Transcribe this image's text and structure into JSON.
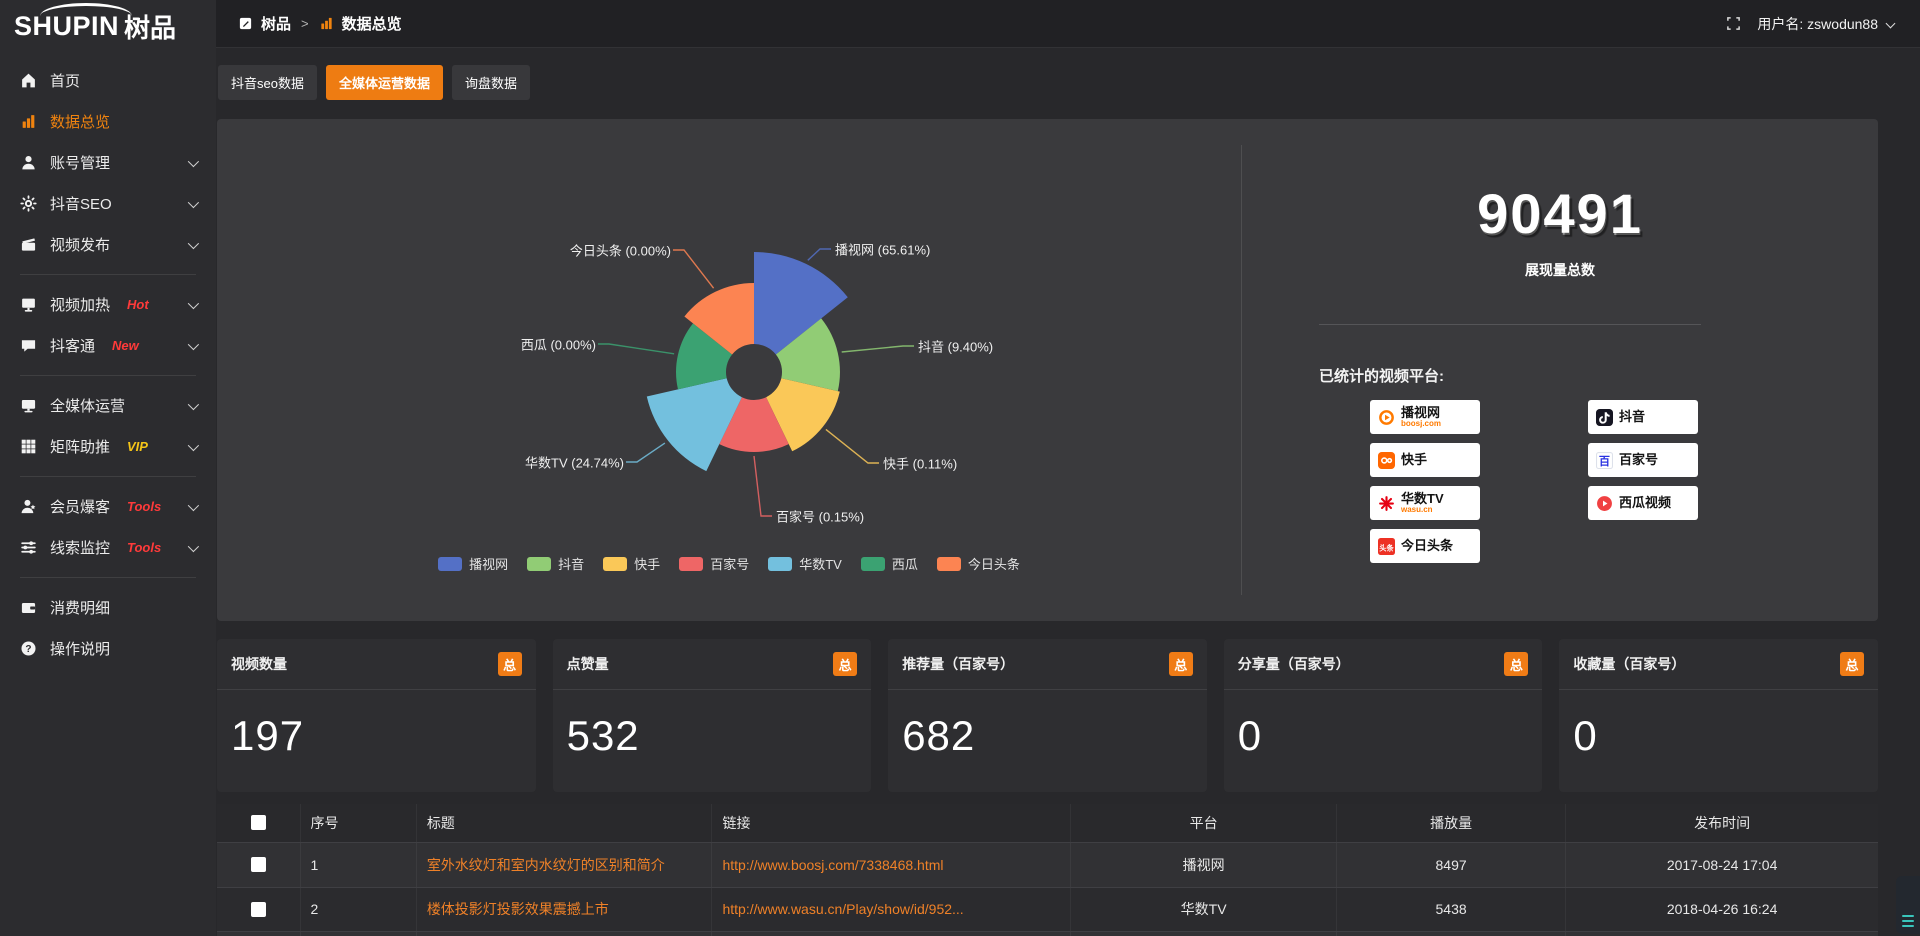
{
  "app": {
    "logo_en": "SHUPIN",
    "logo_cn": "树品"
  },
  "topbar": {
    "breadcrumb_home": "树品",
    "breadcrumb_sep": ">",
    "breadcrumb_current": "数据总览",
    "username": "用户名: zswodun88"
  },
  "sidebar": {
    "items": [
      {
        "icon": "home-icon",
        "label": "首页"
      },
      {
        "icon": "bar-chart-icon",
        "label": "数据总览",
        "active": true
      },
      {
        "icon": "user-icon",
        "label": "账号管理",
        "chevron": true
      },
      {
        "icon": "gear-icon",
        "label": "抖音SEO",
        "chevron": true
      },
      {
        "icon": "video-icon",
        "label": "视频发布",
        "chevron": true,
        "divider_after": true
      },
      {
        "icon": "screen-icon",
        "label": "视频加热",
        "tag": "Hot",
        "tag_color": "#ff3a3a",
        "chevron": true
      },
      {
        "icon": "chat-icon",
        "label": "抖客通",
        "tag": "New",
        "tag_color": "#ff3a3a",
        "chevron": true,
        "divider_after": true
      },
      {
        "icon": "monitor-icon",
        "label": "全媒体运营",
        "chevron": true
      },
      {
        "icon": "grid-icon",
        "label": "矩阵助推",
        "tag": "VIP",
        "tag_color": "#f5c518",
        "chevron": true,
        "divider_after": true
      },
      {
        "icon": "member-icon",
        "label": "会员爆客",
        "tag": "Tools",
        "tag_color": "#ff3a3a",
        "chevron": true
      },
      {
        "icon": "sliders-icon",
        "label": "线索监控",
        "tag": "Tools",
        "tag_color": "#ff3a3a",
        "chevron": true,
        "divider_after": true
      },
      {
        "icon": "wallet-icon",
        "label": "消费明细"
      },
      {
        "icon": "question-icon",
        "label": "操作说明"
      }
    ]
  },
  "tabs": [
    {
      "label": "抖音seo数据"
    },
    {
      "label": "全媒体运营数据",
      "active": true
    },
    {
      "label": "询盘数据"
    }
  ],
  "chart_data": {
    "type": "pie",
    "variant": "nightingale-rose",
    "legend_position": "bottom",
    "label_format": "{name} ({percent}%)",
    "series": [
      {
        "name": "播视网",
        "percent": 65.61,
        "color": "#5470c6"
      },
      {
        "name": "抖音",
        "percent": 9.4,
        "color": "#91cc75"
      },
      {
        "name": "快手",
        "percent": 0.11,
        "color": "#fac858"
      },
      {
        "name": "百家号",
        "percent": 0.15,
        "color": "#ee6666"
      },
      {
        "name": "华数TV",
        "percent": 24.74,
        "color": "#73c0de"
      },
      {
        "name": "西瓜",
        "percent": 0.0,
        "color": "#3ba272"
      },
      {
        "name": "今日头条",
        "percent": 0.0,
        "color": "#fc8452"
      }
    ]
  },
  "summary": {
    "total_value": "90491",
    "total_label": "展现量总数",
    "platforms_title": "已统计的视频平台:",
    "platform_badges": [
      {
        "name": "播视网",
        "sub": "boosj.com",
        "icon": "boosj-icon",
        "col": "left"
      },
      {
        "name": "快手",
        "icon": "kuaishou-icon",
        "col": "left"
      },
      {
        "name": "华数TV",
        "sub": "wasu.cn",
        "icon": "wasu-icon",
        "col": "left"
      },
      {
        "name": "今日头条",
        "icon": "toutiao-icon",
        "col": "left"
      },
      {
        "name": "抖音",
        "icon": "douyin-icon",
        "col": "right"
      },
      {
        "name": "百家号",
        "icon": "baijiahao-icon",
        "col": "right"
      },
      {
        "name": "西瓜视频",
        "icon": "xigua-icon",
        "col": "right"
      }
    ]
  },
  "stat_cards": [
    {
      "title": "视频数量",
      "badge": "总",
      "value": "197"
    },
    {
      "title": "点赞量",
      "badge": "总",
      "value": "532"
    },
    {
      "title": "推荐量（百家号）",
      "badge": "总",
      "value": "682"
    },
    {
      "title": "分享量（百家号）",
      "badge": "总",
      "value": "0"
    },
    {
      "title": "收藏量（百家号）",
      "badge": "总",
      "value": "0"
    }
  ],
  "table": {
    "headers": [
      "序号",
      "标题",
      "链接",
      "平台",
      "播放量",
      "发布时间"
    ],
    "rows": [
      {
        "num": "1",
        "title": "室外水纹灯和室内水纹灯的区别和简介",
        "link": "http://www.boosj.com/7338468.html",
        "platform": "播视网",
        "plays": "8497",
        "time": "2017-08-24 17:04"
      },
      {
        "num": "2",
        "title": "楼体投影灯投影效果震撼上市",
        "link": "http://www.wasu.cn/Play/show/id/952...",
        "platform": "华数TV",
        "plays": "5438",
        "time": "2018-04-26 16:24"
      }
    ]
  }
}
